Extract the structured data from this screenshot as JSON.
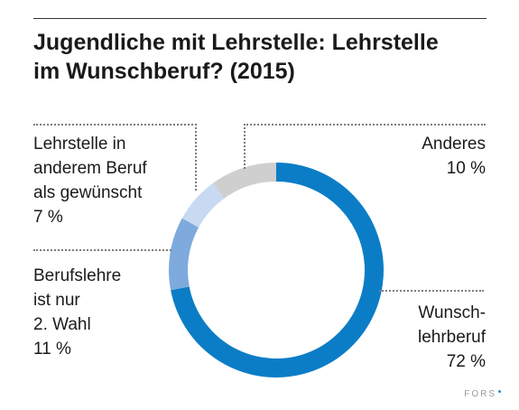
{
  "title_lines": [
    "Jugendliche mit Lehrstelle: Lehrstelle",
    "im Wunschberuf? (2015)"
  ],
  "chart_data": {
    "type": "pie",
    "variant": "donut",
    "title": "Jugendliche mit Lehrstelle: Lehrstelle im Wunschberuf? (2015)",
    "unit": "%",
    "slices": [
      {
        "label_lines": [
          "Wunsch-",
          "lehrberuf"
        ],
        "value_text": "72 %",
        "value": 72,
        "color": "#0b7dc6"
      },
      {
        "label_lines": [
          "Berufslehre",
          "ist nur",
          "2. Wahl"
        ],
        "value_text": "11 %",
        "value": 11,
        "color": "#7eaadd"
      },
      {
        "label_lines": [
          "Lehrstelle in",
          "anderem Beruf",
          "als gewünscht"
        ],
        "value_text": "7 %",
        "value": 7,
        "color": "#c8daf2"
      },
      {
        "label_lines": [
          "Anderes"
        ],
        "value_text": "10 %",
        "value": 10,
        "color": "#cfcfcf"
      }
    ],
    "legend": "none (direct labels)"
  },
  "brand": "FORS"
}
